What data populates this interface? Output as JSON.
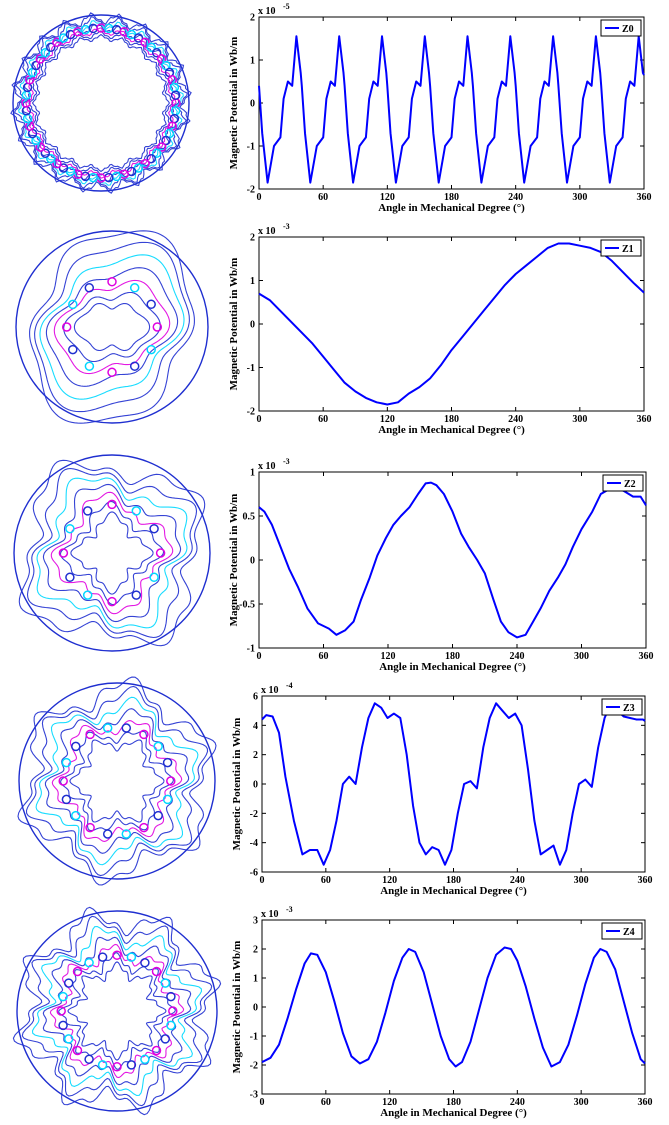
{
  "colors": {
    "line": "#0000ff",
    "contour_a": "#1f2fd0",
    "contour_b": "#00d8ff",
    "contour_c": "#e000e0",
    "axis": "#000000"
  },
  "chart_data": [
    {
      "type": "line",
      "legend": "Z0",
      "legend_position": "top-right",
      "xlabel": "Angle in Mechanical Degree (°)",
      "ylabel": "Magnetic Potential in Wb/m",
      "exponent": "x 10",
      "exponent_power": "-5",
      "xlim": [
        0,
        360
      ],
      "ylim": [
        -2,
        2
      ],
      "xticks": [
        0,
        60,
        120,
        180,
        240,
        300,
        360
      ],
      "yticks": [
        -2,
        -1,
        0,
        1,
        2
      ],
      "contour_poles": 20,
      "series": [
        {
          "x": [
            0,
            3,
            8,
            14,
            20,
            23,
            27,
            31,
            35,
            39,
            40,
            43,
            48,
            54,
            60,
            63,
            67,
            71,
            75,
            79,
            80,
            83,
            88,
            94,
            100,
            103,
            107,
            111,
            115,
            119,
            120,
            123,
            128,
            134,
            140,
            143,
            147,
            151,
            155,
            159,
            160,
            163,
            168,
            174,
            180,
            183,
            187,
            191,
            195,
            199,
            200,
            203,
            208,
            214,
            220,
            223,
            227,
            231,
            235,
            239,
            240,
            243,
            248,
            254,
            260,
            263,
            267,
            271,
            275,
            279,
            280,
            283,
            288,
            294,
            300,
            303,
            307,
            311,
            315,
            319,
            320,
            323,
            328,
            334,
            340,
            343,
            347,
            351,
            355,
            359,
            360
          ],
          "y": [
            0.4,
            -0.7,
            -1.85,
            -1.0,
            -0.8,
            0.1,
            0.5,
            0.4,
            1.55,
            0.7,
            0.4,
            -0.7,
            -1.85,
            -1.0,
            -0.8,
            0.1,
            0.5,
            0.4,
            1.55,
            0.7,
            0.4,
            -0.7,
            -1.85,
            -1.0,
            -0.8,
            0.1,
            0.5,
            0.4,
            1.55,
            0.7,
            0.4,
            -0.7,
            -1.85,
            -1.0,
            -0.8,
            0.1,
            0.5,
            0.4,
            1.55,
            0.7,
            0.4,
            -0.7,
            -1.85,
            -1.0,
            -0.8,
            0.1,
            0.5,
            0.4,
            1.55,
            0.7,
            0.4,
            -0.7,
            -1.85,
            -1.0,
            -0.8,
            0.1,
            0.5,
            0.4,
            1.55,
            0.7,
            0.4,
            -0.7,
            -1.85,
            -1.0,
            -0.8,
            0.1,
            0.5,
            0.4,
            1.55,
            0.7,
            0.4,
            -0.7,
            -1.85,
            -1.0,
            -0.8,
            0.1,
            0.5,
            0.4,
            1.55,
            0.7,
            0.4,
            -0.7,
            -1.85,
            -1.0,
            -0.8,
            0.1,
            0.5,
            0.4,
            1.55,
            0.7,
            0.65
          ]
        }
      ]
    },
    {
      "type": "line",
      "legend": "Z1",
      "legend_position": "top-right",
      "xlabel": "Angle in Mechanical Degree (°)",
      "ylabel": "Magnetic Potential in Wb/m",
      "exponent": "x 10",
      "exponent_power": "-3",
      "xlim": [
        0,
        360
      ],
      "ylim": [
        -2,
        2
      ],
      "xticks": [
        0,
        60,
        120,
        180,
        240,
        300,
        360
      ],
      "yticks": [
        -2,
        -1,
        0,
        1,
        2
      ],
      "contour_poles": 2,
      "series": [
        {
          "x": [
            0,
            10,
            20,
            30,
            40,
            50,
            60,
            70,
            80,
            90,
            100,
            110,
            120,
            130,
            140,
            150,
            160,
            170,
            180,
            190,
            200,
            210,
            220,
            230,
            240,
            250,
            260,
            270,
            280,
            290,
            300,
            310,
            320,
            330,
            340,
            350,
            360
          ],
          "y": [
            0.7,
            0.55,
            0.3,
            0.05,
            -0.2,
            -0.45,
            -0.75,
            -1.05,
            -1.35,
            -1.55,
            -1.7,
            -1.8,
            -1.85,
            -1.8,
            -1.6,
            -1.45,
            -1.25,
            -0.95,
            -0.6,
            -0.3,
            0.0,
            0.3,
            0.6,
            0.9,
            1.15,
            1.35,
            1.55,
            1.75,
            1.85,
            1.85,
            1.8,
            1.75,
            1.65,
            1.45,
            1.2,
            0.95,
            0.72
          ]
        }
      ]
    },
    {
      "type": "line",
      "legend": "Z2",
      "legend_position": "top-right",
      "xlabel": "Angle in Mechanical Degree (°)",
      "ylabel": "Magnetic Potential in Wb/m",
      "exponent": "x 10",
      "exponent_power": "-3",
      "xlim": [
        0,
        360
      ],
      "ylim": [
        -1,
        1
      ],
      "xticks": [
        0,
        60,
        120,
        180,
        240,
        300,
        360
      ],
      "yticks": [
        -1,
        -0.5,
        0,
        0.5,
        1
      ],
      "contour_poles": 4,
      "series": [
        {
          "x": [
            0,
            5,
            12,
            20,
            28,
            36,
            45,
            55,
            65,
            72,
            80,
            88,
            95,
            103,
            110,
            118,
            125,
            132,
            140,
            148,
            155,
            160,
            165,
            172,
            180,
            188,
            195,
            203,
            210,
            218,
            225,
            232,
            240,
            248,
            255,
            262,
            270,
            278,
            285,
            292,
            300,
            310,
            318,
            325,
            333,
            340,
            348,
            355,
            360
          ],
          "y": [
            0.6,
            0.55,
            0.4,
            0.15,
            -0.1,
            -0.3,
            -0.55,
            -0.72,
            -0.78,
            -0.85,
            -0.8,
            -0.7,
            -0.45,
            -0.2,
            0.05,
            0.25,
            0.4,
            0.5,
            0.6,
            0.75,
            0.87,
            0.88,
            0.85,
            0.75,
            0.55,
            0.3,
            0.15,
            0.0,
            -0.15,
            -0.45,
            -0.7,
            -0.82,
            -0.88,
            -0.85,
            -0.7,
            -0.55,
            -0.35,
            -0.2,
            -0.05,
            0.15,
            0.35,
            0.55,
            0.75,
            0.8,
            0.82,
            0.78,
            0.72,
            0.72,
            0.62
          ]
        }
      ]
    },
    {
      "type": "line",
      "legend": "Z3",
      "legend_position": "top-right",
      "xlabel": "Angle in Mechanical Degree (°)",
      "ylabel": "Magnetic Potential in Wb/m",
      "exponent": "x 10",
      "exponent_power": "-4",
      "xlim": [
        0,
        360
      ],
      "ylim": [
        -6,
        6
      ],
      "xticks": [
        0,
        60,
        120,
        180,
        240,
        300,
        360
      ],
      "yticks": [
        -6,
        -4,
        -2,
        0,
        2,
        4,
        6
      ],
      "contour_poles": 6,
      "series": [
        {
          "x": [
            0,
            4,
            10,
            16,
            22,
            30,
            38,
            45,
            52,
            58,
            64,
            70,
            76,
            82,
            88,
            94,
            100,
            106,
            112,
            118,
            124,
            130,
            136,
            142,
            148,
            154,
            160,
            166,
            172,
            178,
            184,
            190,
            196,
            202,
            208,
            214,
            220,
            226,
            232,
            238,
            244,
            250,
            256,
            262,
            268,
            274,
            280,
            286,
            292,
            298,
            304,
            310,
            316,
            322,
            328,
            334,
            340,
            346,
            352,
            358,
            360
          ],
          "y": [
            4.4,
            4.7,
            4.6,
            3.5,
            0.5,
            -2.5,
            -4.8,
            -4.5,
            -4.5,
            -5.5,
            -4.5,
            -2.5,
            0.0,
            0.5,
            0.0,
            2.5,
            4.5,
            5.5,
            5.2,
            4.5,
            4.8,
            4.5,
            2.0,
            -1.5,
            -4.0,
            -4.8,
            -4.3,
            -4.5,
            -5.5,
            -4.5,
            -2.0,
            0.0,
            0.2,
            -0.3,
            2.5,
            4.5,
            5.5,
            5.0,
            4.5,
            4.8,
            4.0,
            1.0,
            -2.5,
            -4.8,
            -4.5,
            -4.2,
            -5.5,
            -4.5,
            -2.0,
            0.0,
            0.3,
            -0.2,
            2.5,
            4.5,
            5.5,
            5.0,
            4.6,
            4.5,
            4.4,
            4.4,
            4.3
          ]
        }
      ]
    },
    {
      "type": "line",
      "legend": "Z4",
      "legend_position": "top-right",
      "xlabel": "Angle in Mechanical Degree (°)",
      "ylabel": "Magnetic Potential in Wb/m",
      "exponent": "x 10",
      "exponent_power": "-3",
      "xlim": [
        0,
        360
      ],
      "ylim": [
        -3,
        3
      ],
      "xticks": [
        0,
        60,
        120,
        180,
        240,
        300,
        360
      ],
      "yticks": [
        -3,
        -2,
        -1,
        0,
        1,
        2,
        3
      ],
      "contour_poles": 8,
      "series": [
        {
          "x": [
            0,
            8,
            16,
            24,
            32,
            40,
            46,
            52,
            60,
            68,
            76,
            84,
            92,
            100,
            108,
            116,
            124,
            132,
            138,
            144,
            152,
            160,
            168,
            176,
            182,
            188,
            196,
            204,
            212,
            220,
            228,
            234,
            240,
            248,
            256,
            264,
            272,
            280,
            288,
            296,
            304,
            312,
            318,
            324,
            332,
            340,
            348,
            356,
            360
          ],
          "y": [
            -1.9,
            -1.75,
            -1.3,
            -0.4,
            0.6,
            1.5,
            1.85,
            1.8,
            1.2,
            0.2,
            -0.9,
            -1.7,
            -1.95,
            -1.8,
            -1.2,
            -0.2,
            0.9,
            1.7,
            2.0,
            1.9,
            1.2,
            0.1,
            -1.0,
            -1.8,
            -2.05,
            -1.9,
            -1.2,
            -0.1,
            1.0,
            1.8,
            2.05,
            2.0,
            1.6,
            0.7,
            -0.4,
            -1.4,
            -2.05,
            -1.9,
            -1.3,
            -0.3,
            0.8,
            1.7,
            2.0,
            1.9,
            1.3,
            0.2,
            -0.9,
            -1.8,
            -1.95
          ]
        }
      ]
    }
  ]
}
